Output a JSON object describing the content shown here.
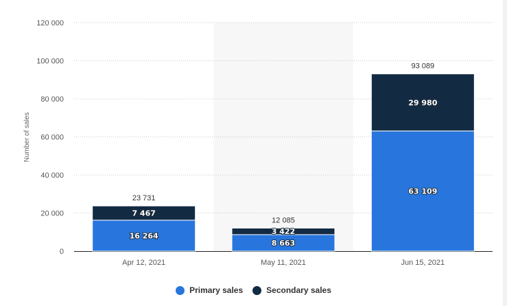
{
  "chart_data": {
    "type": "bar",
    "stacked": true,
    "categories": [
      "Apr 12, 2021",
      "May 11, 2021",
      "Jun 15, 2021"
    ],
    "series": [
      {
        "name": "Primary sales",
        "values": [
          16264,
          8663,
          63109
        ],
        "color": "#2876dd",
        "labels": [
          "16 264",
          "8 663",
          "63 109"
        ]
      },
      {
        "name": "Secondary sales",
        "values": [
          7467,
          3422,
          29980
        ],
        "color": "#132a43",
        "labels": [
          "7 467",
          "3 422",
          "29 980"
        ]
      }
    ],
    "totals": [
      23731,
      12085,
      93089
    ],
    "total_labels": [
      "23 731",
      "12 085",
      "93 089"
    ],
    "ylabel": "Number of sales",
    "ylim": [
      0,
      120000
    ],
    "yticks": [
      0,
      20000,
      40000,
      60000,
      80000,
      100000,
      120000
    ],
    "ytick_labels": [
      "0",
      "20 000",
      "40 000",
      "60 000",
      "80 000",
      "100 000",
      "120 000"
    ],
    "grid": true,
    "highlighted_category": "May 11, 2021",
    "legend_position": "bottom-center"
  },
  "legend": {
    "primary_label": "Primary sales",
    "secondary_label": "Secondary sales",
    "primary_color": "#2876dd",
    "secondary_color": "#132a43"
  }
}
